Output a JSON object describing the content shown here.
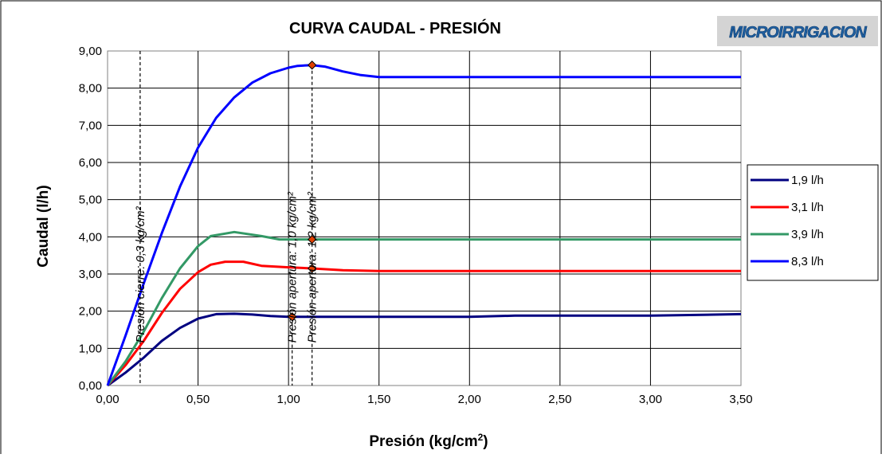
{
  "chart_data": {
    "type": "line",
    "title": "CURVA CAUDAL - PRESIÓN",
    "logo_text": "MICROIRRIGACION",
    "xlabel": "Presión (kg/cm",
    "xlabel_sup": "2",
    "xlabel_end": ")",
    "ylabel": "Caudal (l/h)",
    "xlim": [
      0,
      3.5
    ],
    "ylim": [
      0,
      9
    ],
    "x_ticks": [
      "0,00",
      "0,50",
      "1,00",
      "1,50",
      "2,00",
      "2,50",
      "3,00",
      "3,50"
    ],
    "y_ticks": [
      "0,00",
      "1,00",
      "2,00",
      "3,00",
      "4,00",
      "5,00",
      "6,00",
      "7,00",
      "8,00",
      "9,00"
    ],
    "grid": true,
    "legend_position": "right",
    "series": [
      {
        "name": "1,9 l/h",
        "color": "#000080",
        "points": [
          [
            0,
            0
          ],
          [
            0.1,
            0.35
          ],
          [
            0.2,
            0.75
          ],
          [
            0.3,
            1.2
          ],
          [
            0.4,
            1.55
          ],
          [
            0.5,
            1.8
          ],
          [
            0.6,
            1.92
          ],
          [
            0.7,
            1.93
          ],
          [
            0.8,
            1.91
          ],
          [
            0.9,
            1.87
          ],
          [
            1.0,
            1.85
          ],
          [
            1.2,
            1.85
          ],
          [
            1.5,
            1.85
          ],
          [
            2.0,
            1.85
          ],
          [
            2.25,
            1.88
          ],
          [
            2.5,
            1.88
          ],
          [
            3.0,
            1.88
          ],
          [
            3.5,
            1.92
          ]
        ]
      },
      {
        "name": "3,1 l/h",
        "color": "#ff0000",
        "points": [
          [
            0,
            0
          ],
          [
            0.1,
            0.55
          ],
          [
            0.2,
            1.2
          ],
          [
            0.3,
            1.95
          ],
          [
            0.4,
            2.6
          ],
          [
            0.5,
            3.05
          ],
          [
            0.57,
            3.25
          ],
          [
            0.65,
            3.33
          ],
          [
            0.75,
            3.33
          ],
          [
            0.85,
            3.22
          ],
          [
            1.0,
            3.18
          ],
          [
            1.13,
            3.15
          ],
          [
            1.3,
            3.1
          ],
          [
            1.5,
            3.08
          ],
          [
            2.0,
            3.08
          ],
          [
            3.0,
            3.08
          ],
          [
            3.5,
            3.08
          ]
        ]
      },
      {
        "name": "3,9 l/h",
        "color": "#339966",
        "points": [
          [
            0,
            0
          ],
          [
            0.1,
            0.65
          ],
          [
            0.2,
            1.45
          ],
          [
            0.3,
            2.35
          ],
          [
            0.4,
            3.15
          ],
          [
            0.5,
            3.75
          ],
          [
            0.57,
            4.02
          ],
          [
            0.7,
            4.13
          ],
          [
            0.85,
            4.02
          ],
          [
            0.95,
            3.93
          ],
          [
            1.13,
            3.93
          ],
          [
            1.5,
            3.93
          ],
          [
            2.0,
            3.93
          ],
          [
            3.0,
            3.93
          ],
          [
            3.5,
            3.93
          ]
        ]
      },
      {
        "name": "8,3 l/h",
        "color": "#0000ff",
        "points": [
          [
            0,
            0
          ],
          [
            0.1,
            1.35
          ],
          [
            0.2,
            2.75
          ],
          [
            0.3,
            4.1
          ],
          [
            0.4,
            5.35
          ],
          [
            0.5,
            6.4
          ],
          [
            0.6,
            7.2
          ],
          [
            0.7,
            7.75
          ],
          [
            0.8,
            8.15
          ],
          [
            0.9,
            8.4
          ],
          [
            1.0,
            8.55
          ],
          [
            1.05,
            8.6
          ],
          [
            1.13,
            8.62
          ],
          [
            1.2,
            8.58
          ],
          [
            1.3,
            8.45
          ],
          [
            1.4,
            8.35
          ],
          [
            1.5,
            8.3
          ],
          [
            2.0,
            8.3
          ],
          [
            3.0,
            8.3
          ],
          [
            3.5,
            8.3
          ]
        ]
      }
    ],
    "markers": [
      {
        "x": 1.02,
        "y": 1.85
      },
      {
        "x": 1.13,
        "y": 3.15
      },
      {
        "x": 1.13,
        "y": 3.93
      },
      {
        "x": 1.13,
        "y": 8.62
      }
    ],
    "reference_lines": [
      {
        "x": 0.18,
        "y_top": 9.0,
        "label": "Presión cierre: 0,3 kg/cm²",
        "label_y": 1.15
      },
      {
        "x": 1.02,
        "y_top": 1.85,
        "label": "Presión apertura: 1,0 kg/cm²",
        "label_y": 1.15
      },
      {
        "x": 1.13,
        "y_top": 8.62,
        "label": "Presión apertura: 1,2 kg/cm²",
        "label_y": 1.15
      }
    ]
  }
}
